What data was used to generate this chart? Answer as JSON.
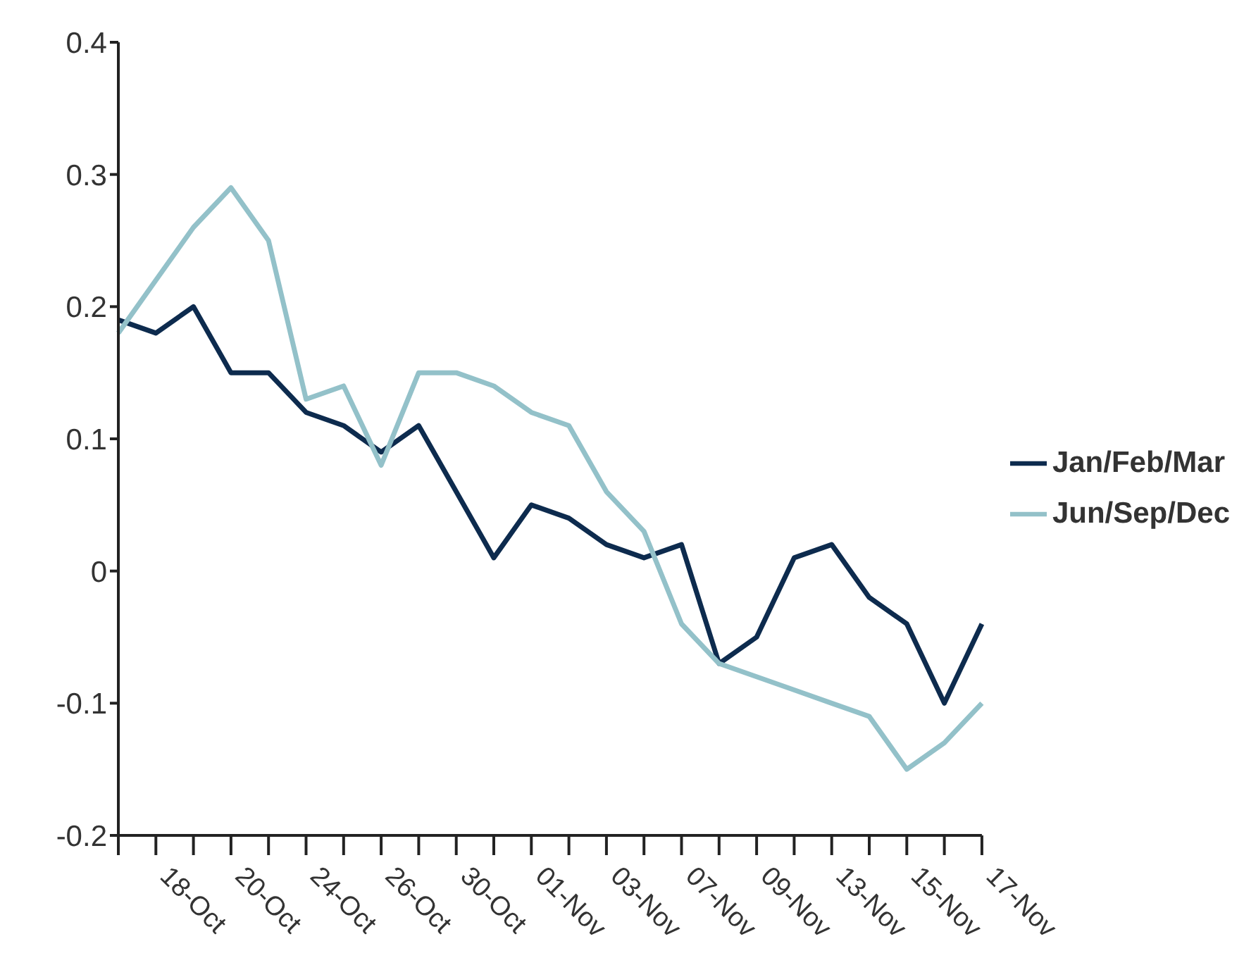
{
  "chart_data": {
    "type": "line",
    "categories": [
      null,
      "18-Oct",
      null,
      "20-Oct",
      null,
      "24-Oct",
      null,
      "26-Oct",
      null,
      "30-Oct",
      null,
      "01-Nov",
      null,
      "03-Nov",
      null,
      "07-Nov",
      null,
      "09-Nov",
      null,
      "13-Nov",
      null,
      "15-Nov",
      null,
      "17-Nov"
    ],
    "series": [
      {
        "name": "Jan/Feb/Mar",
        "color": "#0d2b4e",
        "values": [
          0.19,
          0.18,
          0.2,
          0.15,
          0.15,
          0.12,
          0.11,
          0.09,
          0.11,
          0.06,
          0.01,
          0.05,
          0.04,
          0.02,
          0.01,
          0.02,
          -0.07,
          -0.05,
          0.01,
          0.02,
          -0.02,
          -0.04,
          -0.1,
          -0.04
        ]
      },
      {
        "name": "Jun/Sep/Dec",
        "color": "#93c1c9",
        "values": [
          0.18,
          0.22,
          0.26,
          0.29,
          0.25,
          0.13,
          0.14,
          0.08,
          0.15,
          0.15,
          0.14,
          0.12,
          0.11,
          0.06,
          0.03,
          -0.04,
          -0.07,
          -0.08,
          -0.09,
          -0.1,
          -0.11,
          -0.15,
          -0.13,
          -0.1
        ]
      }
    ],
    "ylim": [
      -0.2,
      0.4
    ],
    "yticks": [
      -0.2,
      -0.1,
      0,
      0.1,
      0.2,
      0.3,
      0.4
    ],
    "grid": false,
    "legend": "right",
    "marker": "none",
    "line_style": "solid"
  }
}
